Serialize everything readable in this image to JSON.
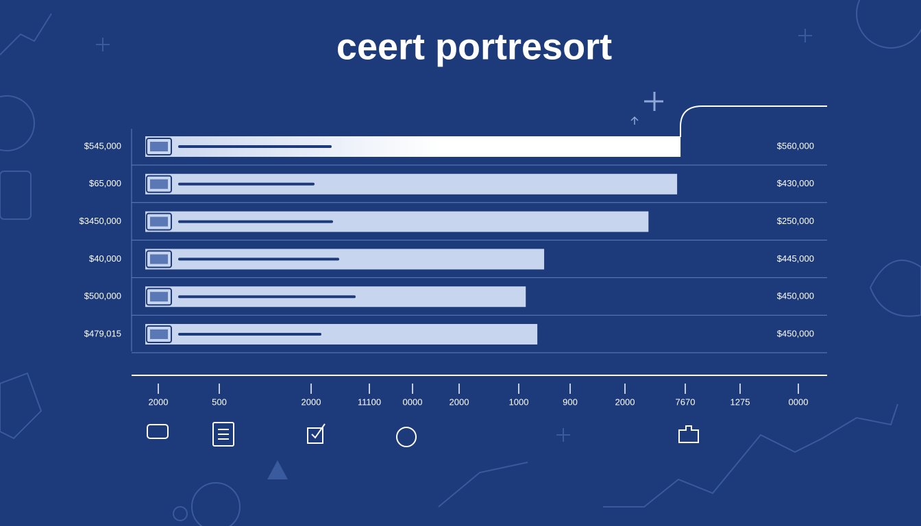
{
  "chart_data": {
    "type": "bar",
    "orientation": "horizontal",
    "title": "ceert portresort",
    "categories": [
      "$545,000",
      "$65,000",
      "$3450,000",
      "$40,000",
      "$500,000",
      "$479,015"
    ],
    "right_labels": [
      "$560,000",
      "$430,000",
      "$250,000",
      "$445,000",
      "$450,000",
      "$450,000"
    ],
    "values": [
      78.5,
      78.0,
      73.8,
      58.5,
      55.8,
      57.5
    ],
    "xlim": [
      0,
      100
    ],
    "x_labels": [
      "2000",
      "500",
      "2000",
      "11100",
      "0000",
      "2000",
      "1000",
      "900",
      "2000",
      "7670",
      "1275",
      "0000"
    ],
    "color": "#c8d5ee",
    "highlight_color": "#ffffff"
  }
}
